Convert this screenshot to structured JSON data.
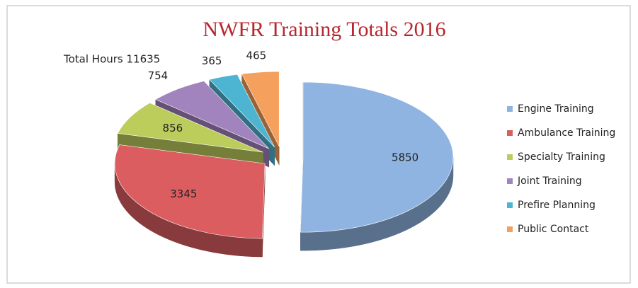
{
  "chart_data": {
    "type": "pie",
    "title": "NWFR Training Totals 2016",
    "annotation": "Total Hours 11635",
    "categories": [
      "Engine Training",
      "Ambulance Training",
      "Specialty Training",
      "Joint Training",
      "Prefire Planning",
      "Public Contact"
    ],
    "values": [
      5850,
      3345,
      856,
      754,
      365,
      465
    ],
    "colors": [
      "#8fb4e2",
      "#dc5d60",
      "#bccd5c",
      "#a183bd",
      "#4db5d2",
      "#f5a05c"
    ],
    "legend": "right"
  }
}
